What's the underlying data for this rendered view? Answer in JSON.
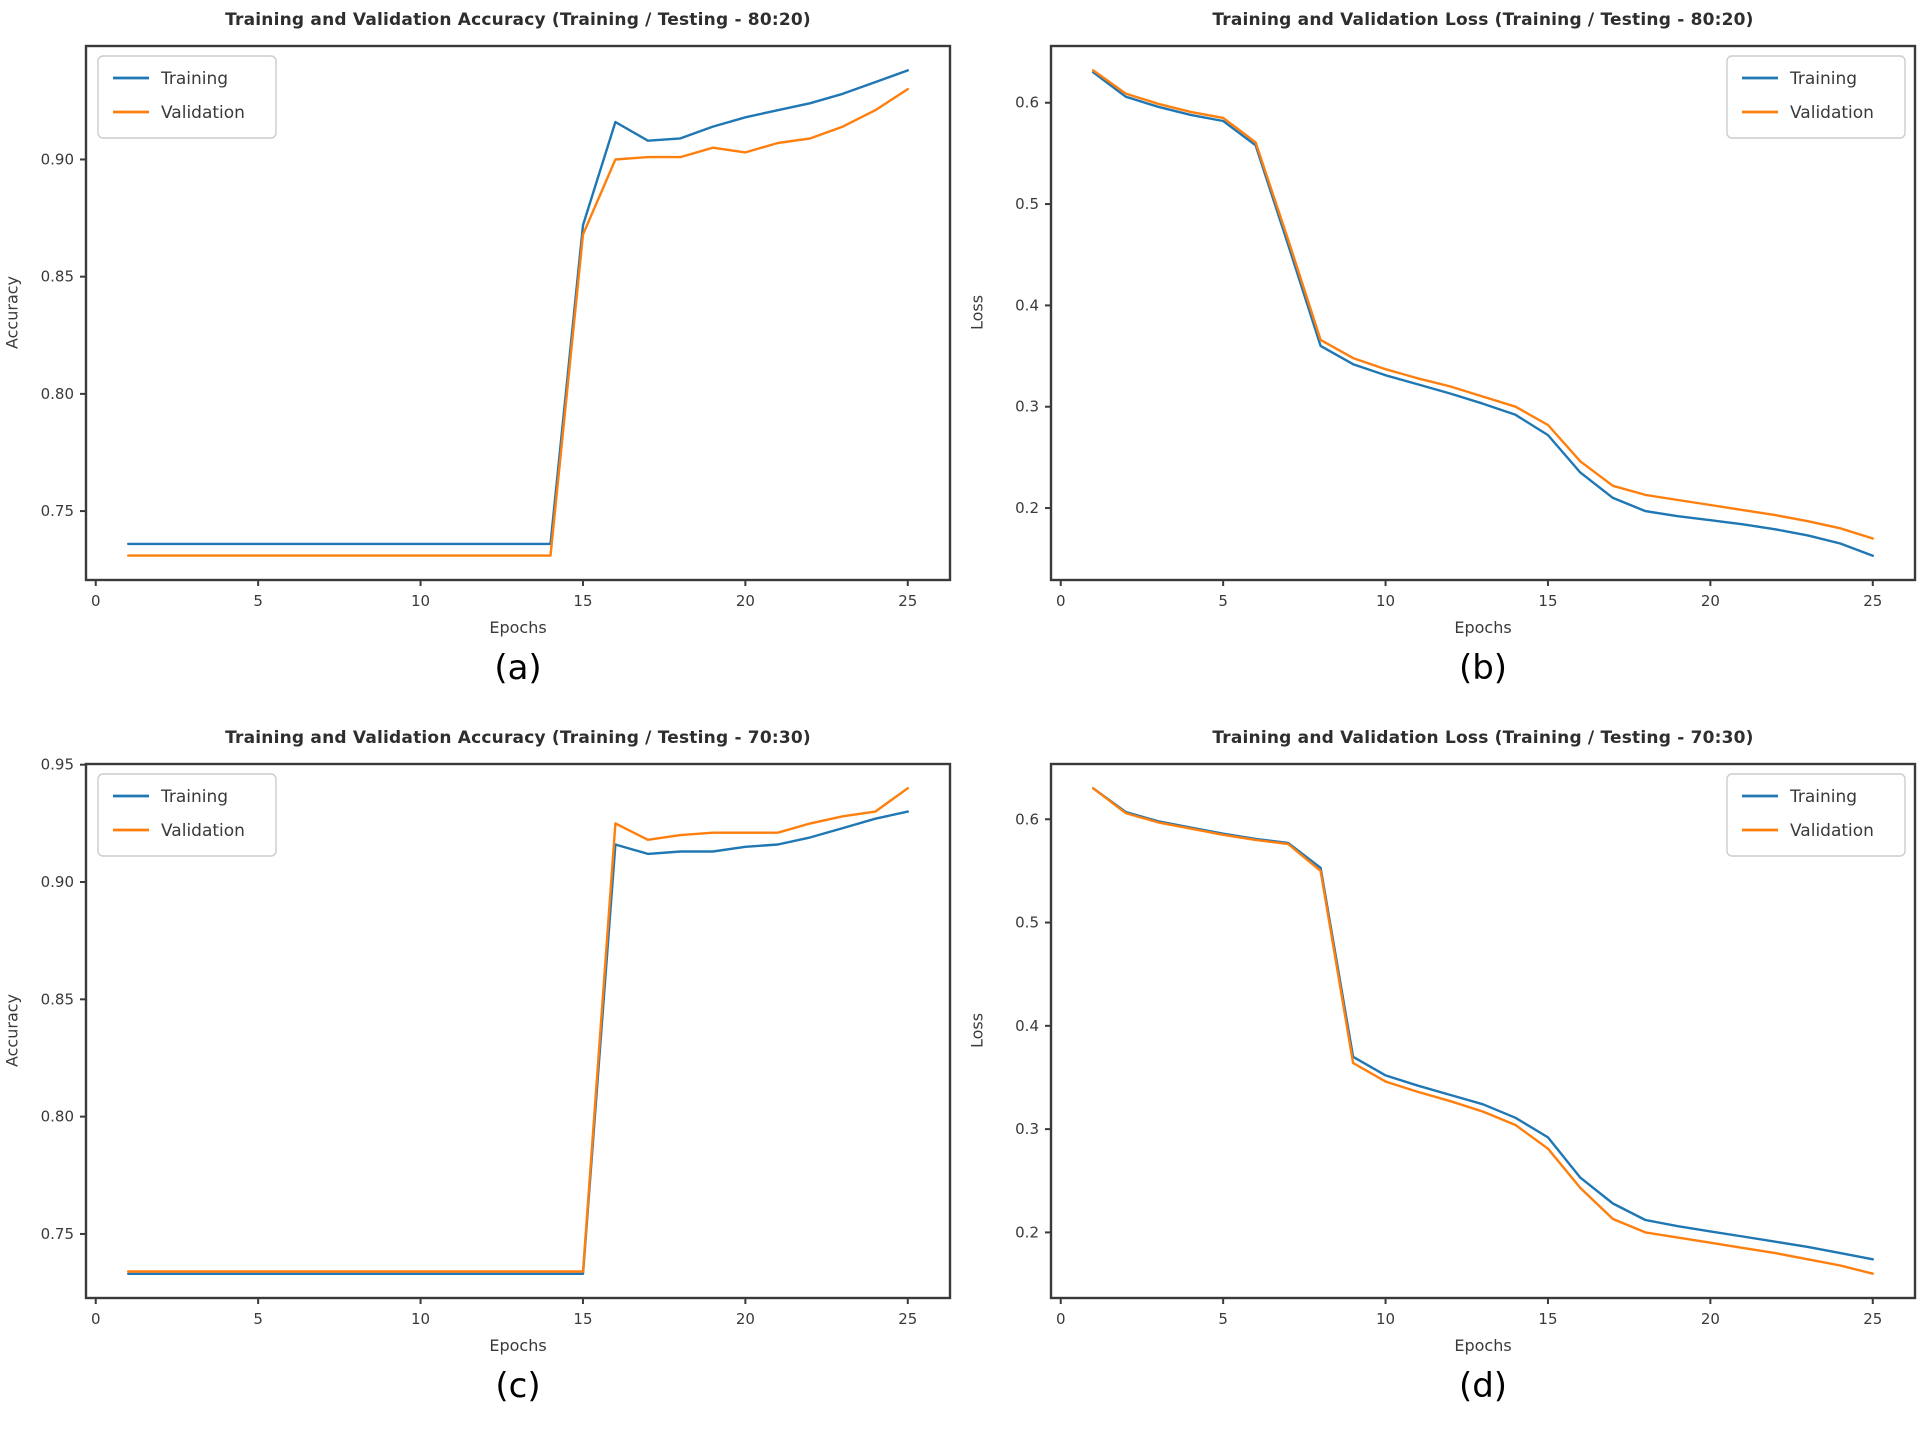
{
  "figure": {
    "background": "#ffffff",
    "xlabel": "Epochs",
    "captions": [
      "(a)",
      "(b)",
      "(c)",
      "(d)"
    ]
  },
  "colors": {
    "training": "#1f77b4",
    "validation": "#ff7f0e",
    "spine": "#3a3a3a",
    "tick_text": "#3a3a3a",
    "title_text": "#2e2e2e",
    "legend_border": "#cccccc",
    "legend_bg": "#ffffff"
  },
  "chart_data": [
    {
      "type": "line",
      "title": "Training and Validation Accuracy (Training / Testing - 80:20)",
      "xlabel": "Epochs",
      "ylabel": "Accuracy",
      "caption": "(a)",
      "grid": false,
      "legend_position": "top-left",
      "xlim": [
        -0.3,
        26.3
      ],
      "ylim": [
        0.7206,
        0.9484
      ],
      "xticks": [
        0,
        5,
        10,
        15,
        20,
        25
      ],
      "yticks": [
        "0.75",
        "0.80",
        "0.85",
        "0.90"
      ],
      "x": [
        1,
        2,
        3,
        4,
        5,
        6,
        7,
        8,
        9,
        10,
        11,
        12,
        13,
        14,
        15,
        16,
        17,
        18,
        19,
        20,
        21,
        22,
        23,
        24,
        25
      ],
      "series": [
        {
          "name": "Training",
          "color": "#1f77b4",
          "values": [
            0.736,
            0.736,
            0.736,
            0.736,
            0.736,
            0.736,
            0.736,
            0.736,
            0.736,
            0.736,
            0.736,
            0.736,
            0.736,
            0.736,
            0.872,
            0.916,
            0.908,
            0.909,
            0.914,
            0.918,
            0.921,
            0.924,
            0.928,
            0.933,
            0.938
          ]
        },
        {
          "name": "Validation",
          "color": "#ff7f0e",
          "values": [
            0.731,
            0.731,
            0.731,
            0.731,
            0.731,
            0.731,
            0.731,
            0.731,
            0.731,
            0.731,
            0.731,
            0.731,
            0.731,
            0.731,
            0.868,
            0.9,
            0.901,
            0.901,
            0.905,
            0.903,
            0.907,
            0.909,
            0.914,
            0.921,
            0.93
          ]
        }
      ]
    },
    {
      "type": "line",
      "title": "Training and Validation Loss (Training / Testing - 80:20)",
      "xlabel": "Epochs",
      "ylabel": "Loss",
      "caption": "(b)",
      "grid": false,
      "legend_position": "top-right",
      "xlim": [
        -0.3,
        26.3
      ],
      "ylim": [
        0.129,
        0.656
      ],
      "xticks": [
        0,
        5,
        10,
        15,
        20,
        25
      ],
      "yticks": [
        "0.2",
        "0.3",
        "0.4",
        "0.5",
        "0.6"
      ],
      "x": [
        1,
        2,
        3,
        4,
        5,
        6,
        7,
        8,
        9,
        10,
        11,
        12,
        13,
        14,
        15,
        16,
        17,
        18,
        19,
        20,
        21,
        22,
        23,
        24,
        25
      ],
      "series": [
        {
          "name": "Training",
          "color": "#1f77b4",
          "values": [
            0.63,
            0.606,
            0.596,
            0.588,
            0.582,
            0.558,
            0.46,
            0.36,
            0.342,
            0.331,
            0.322,
            0.313,
            0.303,
            0.292,
            0.272,
            0.235,
            0.21,
            0.197,
            0.192,
            0.188,
            0.184,
            0.179,
            0.173,
            0.165,
            0.153
          ]
        },
        {
          "name": "Validation",
          "color": "#ff7f0e",
          "values": [
            0.632,
            0.609,
            0.599,
            0.591,
            0.585,
            0.561,
            0.465,
            0.366,
            0.348,
            0.337,
            0.328,
            0.32,
            0.31,
            0.3,
            0.282,
            0.246,
            0.222,
            0.213,
            0.208,
            0.203,
            0.198,
            0.193,
            0.187,
            0.18,
            0.17
          ]
        }
      ]
    },
    {
      "type": "line",
      "title": "Training and Validation Accuracy (Training / Testing - 70:30)",
      "xlabel": "Epochs",
      "ylabel": "Accuracy",
      "caption": "(c)",
      "grid": false,
      "legend_position": "top-left",
      "xlim": [
        -0.3,
        26.3
      ],
      "ylim": [
        0.7227,
        0.9503
      ],
      "xticks": [
        0,
        5,
        10,
        15,
        20,
        25
      ],
      "yticks": [
        "0.75",
        "0.80",
        "0.85",
        "0.90",
        "0.95"
      ],
      "x": [
        1,
        2,
        3,
        4,
        5,
        6,
        7,
        8,
        9,
        10,
        11,
        12,
        13,
        14,
        15,
        16,
        17,
        18,
        19,
        20,
        21,
        22,
        23,
        24,
        25
      ],
      "series": [
        {
          "name": "Training",
          "color": "#1f77b4",
          "values": [
            0.733,
            0.733,
            0.733,
            0.733,
            0.733,
            0.733,
            0.733,
            0.733,
            0.733,
            0.733,
            0.733,
            0.733,
            0.733,
            0.733,
            0.733,
            0.916,
            0.912,
            0.913,
            0.913,
            0.915,
            0.916,
            0.919,
            0.923,
            0.927,
            0.93
          ]
        },
        {
          "name": "Validation",
          "color": "#ff7f0e",
          "values": [
            0.734,
            0.734,
            0.734,
            0.734,
            0.734,
            0.734,
            0.734,
            0.734,
            0.734,
            0.734,
            0.734,
            0.734,
            0.734,
            0.734,
            0.734,
            0.925,
            0.918,
            0.92,
            0.921,
            0.921,
            0.921,
            0.925,
            0.928,
            0.93,
            0.94
          ]
        }
      ]
    },
    {
      "type": "line",
      "title": "Training and Validation Loss (Training / Testing - 70:30)",
      "xlabel": "Epochs",
      "ylabel": "Loss",
      "caption": "(d)",
      "grid": false,
      "legend_position": "top-right",
      "xlim": [
        -0.3,
        26.3
      ],
      "ylim": [
        0.1365,
        0.6535
      ],
      "xticks": [
        0,
        5,
        10,
        15,
        20,
        25
      ],
      "yticks": [
        "0.2",
        "0.3",
        "0.4",
        "0.5",
        "0.6"
      ],
      "x": [
        1,
        2,
        3,
        4,
        5,
        6,
        7,
        8,
        9,
        10,
        11,
        12,
        13,
        14,
        15,
        16,
        17,
        18,
        19,
        20,
        21,
        22,
        23,
        24,
        25
      ],
      "series": [
        {
          "name": "Training",
          "color": "#1f77b4",
          "values": [
            0.63,
            0.607,
            0.598,
            0.592,
            0.586,
            0.581,
            0.577,
            0.553,
            0.37,
            0.352,
            0.342,
            0.333,
            0.324,
            0.311,
            0.292,
            0.253,
            0.228,
            0.212,
            0.206,
            0.201,
            0.196,
            0.191,
            0.186,
            0.18,
            0.174
          ]
        },
        {
          "name": "Validation",
          "color": "#ff7f0e",
          "values": [
            0.63,
            0.606,
            0.597,
            0.591,
            0.585,
            0.58,
            0.576,
            0.55,
            0.364,
            0.346,
            0.336,
            0.327,
            0.317,
            0.304,
            0.281,
            0.243,
            0.213,
            0.2,
            0.195,
            0.19,
            0.185,
            0.18,
            0.174,
            0.168,
            0.16
          ]
        }
      ]
    }
  ]
}
